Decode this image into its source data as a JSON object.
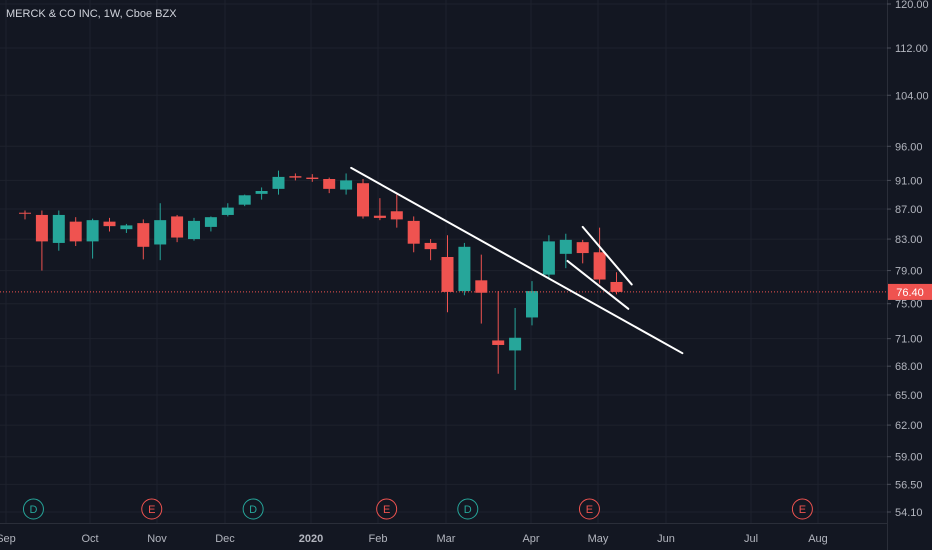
{
  "chart_data": {
    "type": "candlestick",
    "title": "MERCK & CO INC, 1W, Cboe BZX",
    "y_axis": {
      "scale": "log",
      "range": [
        54.1,
        120.0
      ],
      "ticks": [
        "120.00",
        "112.00",
        "104.00",
        "96.00",
        "91.00",
        "87.00",
        "83.00",
        "79.00",
        "75.00",
        "71.00",
        "68.00",
        "65.00",
        "62.00",
        "59.00",
        "56.50",
        "54.10"
      ]
    },
    "x_axis": {
      "ticks": [
        "Sep",
        "Oct",
        "Nov",
        "Dec",
        "2020",
        "Feb",
        "Mar",
        "Apr",
        "May",
        "Jun",
        "Jul",
        "Aug"
      ]
    },
    "last_price": {
      "value": 76.4,
      "label": "76.40"
    },
    "colors": {
      "up": "#26a69a",
      "down": "#ef5350",
      "price_line": "#ef5350",
      "trendline": "#ffffff",
      "background": "#131722"
    },
    "candles": [
      {
        "week": 0,
        "open": 86.5,
        "high": 86.8,
        "low": 85.6,
        "close": 86.4
      },
      {
        "week": 1,
        "open": 86.2,
        "high": 86.8,
        "low": 79.0,
        "close": 82.7
      },
      {
        "week": 2,
        "open": 82.5,
        "high": 86.8,
        "low": 81.5,
        "close": 86.2
      },
      {
        "week": 3,
        "open": 85.3,
        "high": 85.9,
        "low": 82.1,
        "close": 82.7
      },
      {
        "week": 4,
        "open": 82.7,
        "high": 85.7,
        "low": 80.5,
        "close": 85.5
      },
      {
        "week": 5,
        "open": 85.3,
        "high": 85.8,
        "low": 84.0,
        "close": 84.7
      },
      {
        "week": 6,
        "open": 84.3,
        "high": 85.0,
        "low": 83.8,
        "close": 84.8
      },
      {
        "week": 7,
        "open": 85.1,
        "high": 85.6,
        "low": 80.4,
        "close": 82.0
      },
      {
        "week": 8,
        "open": 82.3,
        "high": 87.8,
        "low": 80.3,
        "close": 85.5
      },
      {
        "week": 9,
        "open": 86.0,
        "high": 86.2,
        "low": 82.6,
        "close": 83.2
      },
      {
        "week": 10,
        "open": 83.0,
        "high": 85.8,
        "low": 82.8,
        "close": 85.4
      },
      {
        "week": 11,
        "open": 84.6,
        "high": 86.0,
        "low": 84.0,
        "close": 85.9
      },
      {
        "week": 12,
        "open": 86.2,
        "high": 87.8,
        "low": 86.0,
        "close": 87.2
      },
      {
        "week": 13,
        "open": 87.6,
        "high": 89.0,
        "low": 87.4,
        "close": 88.9
      },
      {
        "week": 14,
        "open": 89.1,
        "high": 90.0,
        "low": 88.3,
        "close": 89.5
      },
      {
        "week": 15,
        "open": 89.8,
        "high": 92.4,
        "low": 89.0,
        "close": 91.5
      },
      {
        "week": 16,
        "open": 91.6,
        "high": 92.0,
        "low": 91.0,
        "close": 91.4
      },
      {
        "week": 17,
        "open": 91.4,
        "high": 91.9,
        "low": 90.8,
        "close": 91.2
      },
      {
        "week": 18,
        "open": 91.2,
        "high": 91.4,
        "low": 89.2,
        "close": 89.8
      },
      {
        "week": 19,
        "open": 89.7,
        "high": 92.0,
        "low": 89.0,
        "close": 91.0
      },
      {
        "week": 20,
        "open": 90.6,
        "high": 91.2,
        "low": 85.7,
        "close": 86.0
      },
      {
        "week": 21,
        "open": 86.1,
        "high": 88.5,
        "low": 85.5,
        "close": 85.8
      },
      {
        "week": 22,
        "open": 86.7,
        "high": 89.0,
        "low": 84.5,
        "close": 85.6
      },
      {
        "week": 23,
        "open": 85.4,
        "high": 86.0,
        "low": 81.3,
        "close": 82.4
      },
      {
        "week": 24,
        "open": 82.5,
        "high": 83.0,
        "low": 80.3,
        "close": 81.7
      },
      {
        "week": 25,
        "open": 80.7,
        "high": 83.5,
        "low": 74.0,
        "close": 76.4
      },
      {
        "week": 26,
        "open": 76.5,
        "high": 82.5,
        "low": 76.0,
        "close": 82.0
      },
      {
        "week": 27,
        "open": 77.8,
        "high": 81.0,
        "low": 72.7,
        "close": 76.3
      },
      {
        "week": 28,
        "open": 70.8,
        "high": 76.5,
        "low": 67.2,
        "close": 70.3
      },
      {
        "week": 29,
        "open": 69.7,
        "high": 74.5,
        "low": 65.5,
        "close": 71.1
      },
      {
        "week": 30,
        "open": 73.4,
        "high": 77.7,
        "low": 72.5,
        "close": 76.5
      },
      {
        "week": 31,
        "open": 78.5,
        "high": 83.5,
        "low": 78.1,
        "close": 82.7
      },
      {
        "week": 32,
        "open": 81.1,
        "high": 83.7,
        "low": 79.3,
        "close": 82.9
      },
      {
        "week": 33,
        "open": 82.6,
        "high": 82.9,
        "low": 79.9,
        "close": 81.2
      },
      {
        "week": 34,
        "open": 81.3,
        "high": 84.5,
        "low": 77.4,
        "close": 77.9
      },
      {
        "week": 35,
        "open": 77.6,
        "high": 78.8,
        "low": 76.1,
        "close": 76.4
      }
    ],
    "trendlines": [
      {
        "from": {
          "week": 19.3,
          "value": 92.8
        },
        "to": {
          "week": 38.9,
          "value": 69.4
        }
      },
      {
        "from": {
          "week": 32.1,
          "value": 80.2
        },
        "to": {
          "week": 35.7,
          "value": 74.4
        }
      },
      {
        "from": {
          "week": 33.0,
          "value": 84.6
        },
        "to": {
          "week": 35.9,
          "value": 77.3
        }
      }
    ],
    "event_markers": [
      {
        "week": 0.5,
        "label": "D",
        "kind": "dividend"
      },
      {
        "week": 7.5,
        "label": "E",
        "kind": "earnings"
      },
      {
        "week": 13.5,
        "label": "D",
        "kind": "dividend"
      },
      {
        "week": 21.4,
        "label": "E",
        "kind": "earnings"
      },
      {
        "week": 26.2,
        "label": "D",
        "kind": "dividend"
      },
      {
        "week": 33.4,
        "label": "E",
        "kind": "earnings"
      },
      {
        "week": 46.0,
        "label": "E",
        "kind": "earnings"
      }
    ]
  }
}
